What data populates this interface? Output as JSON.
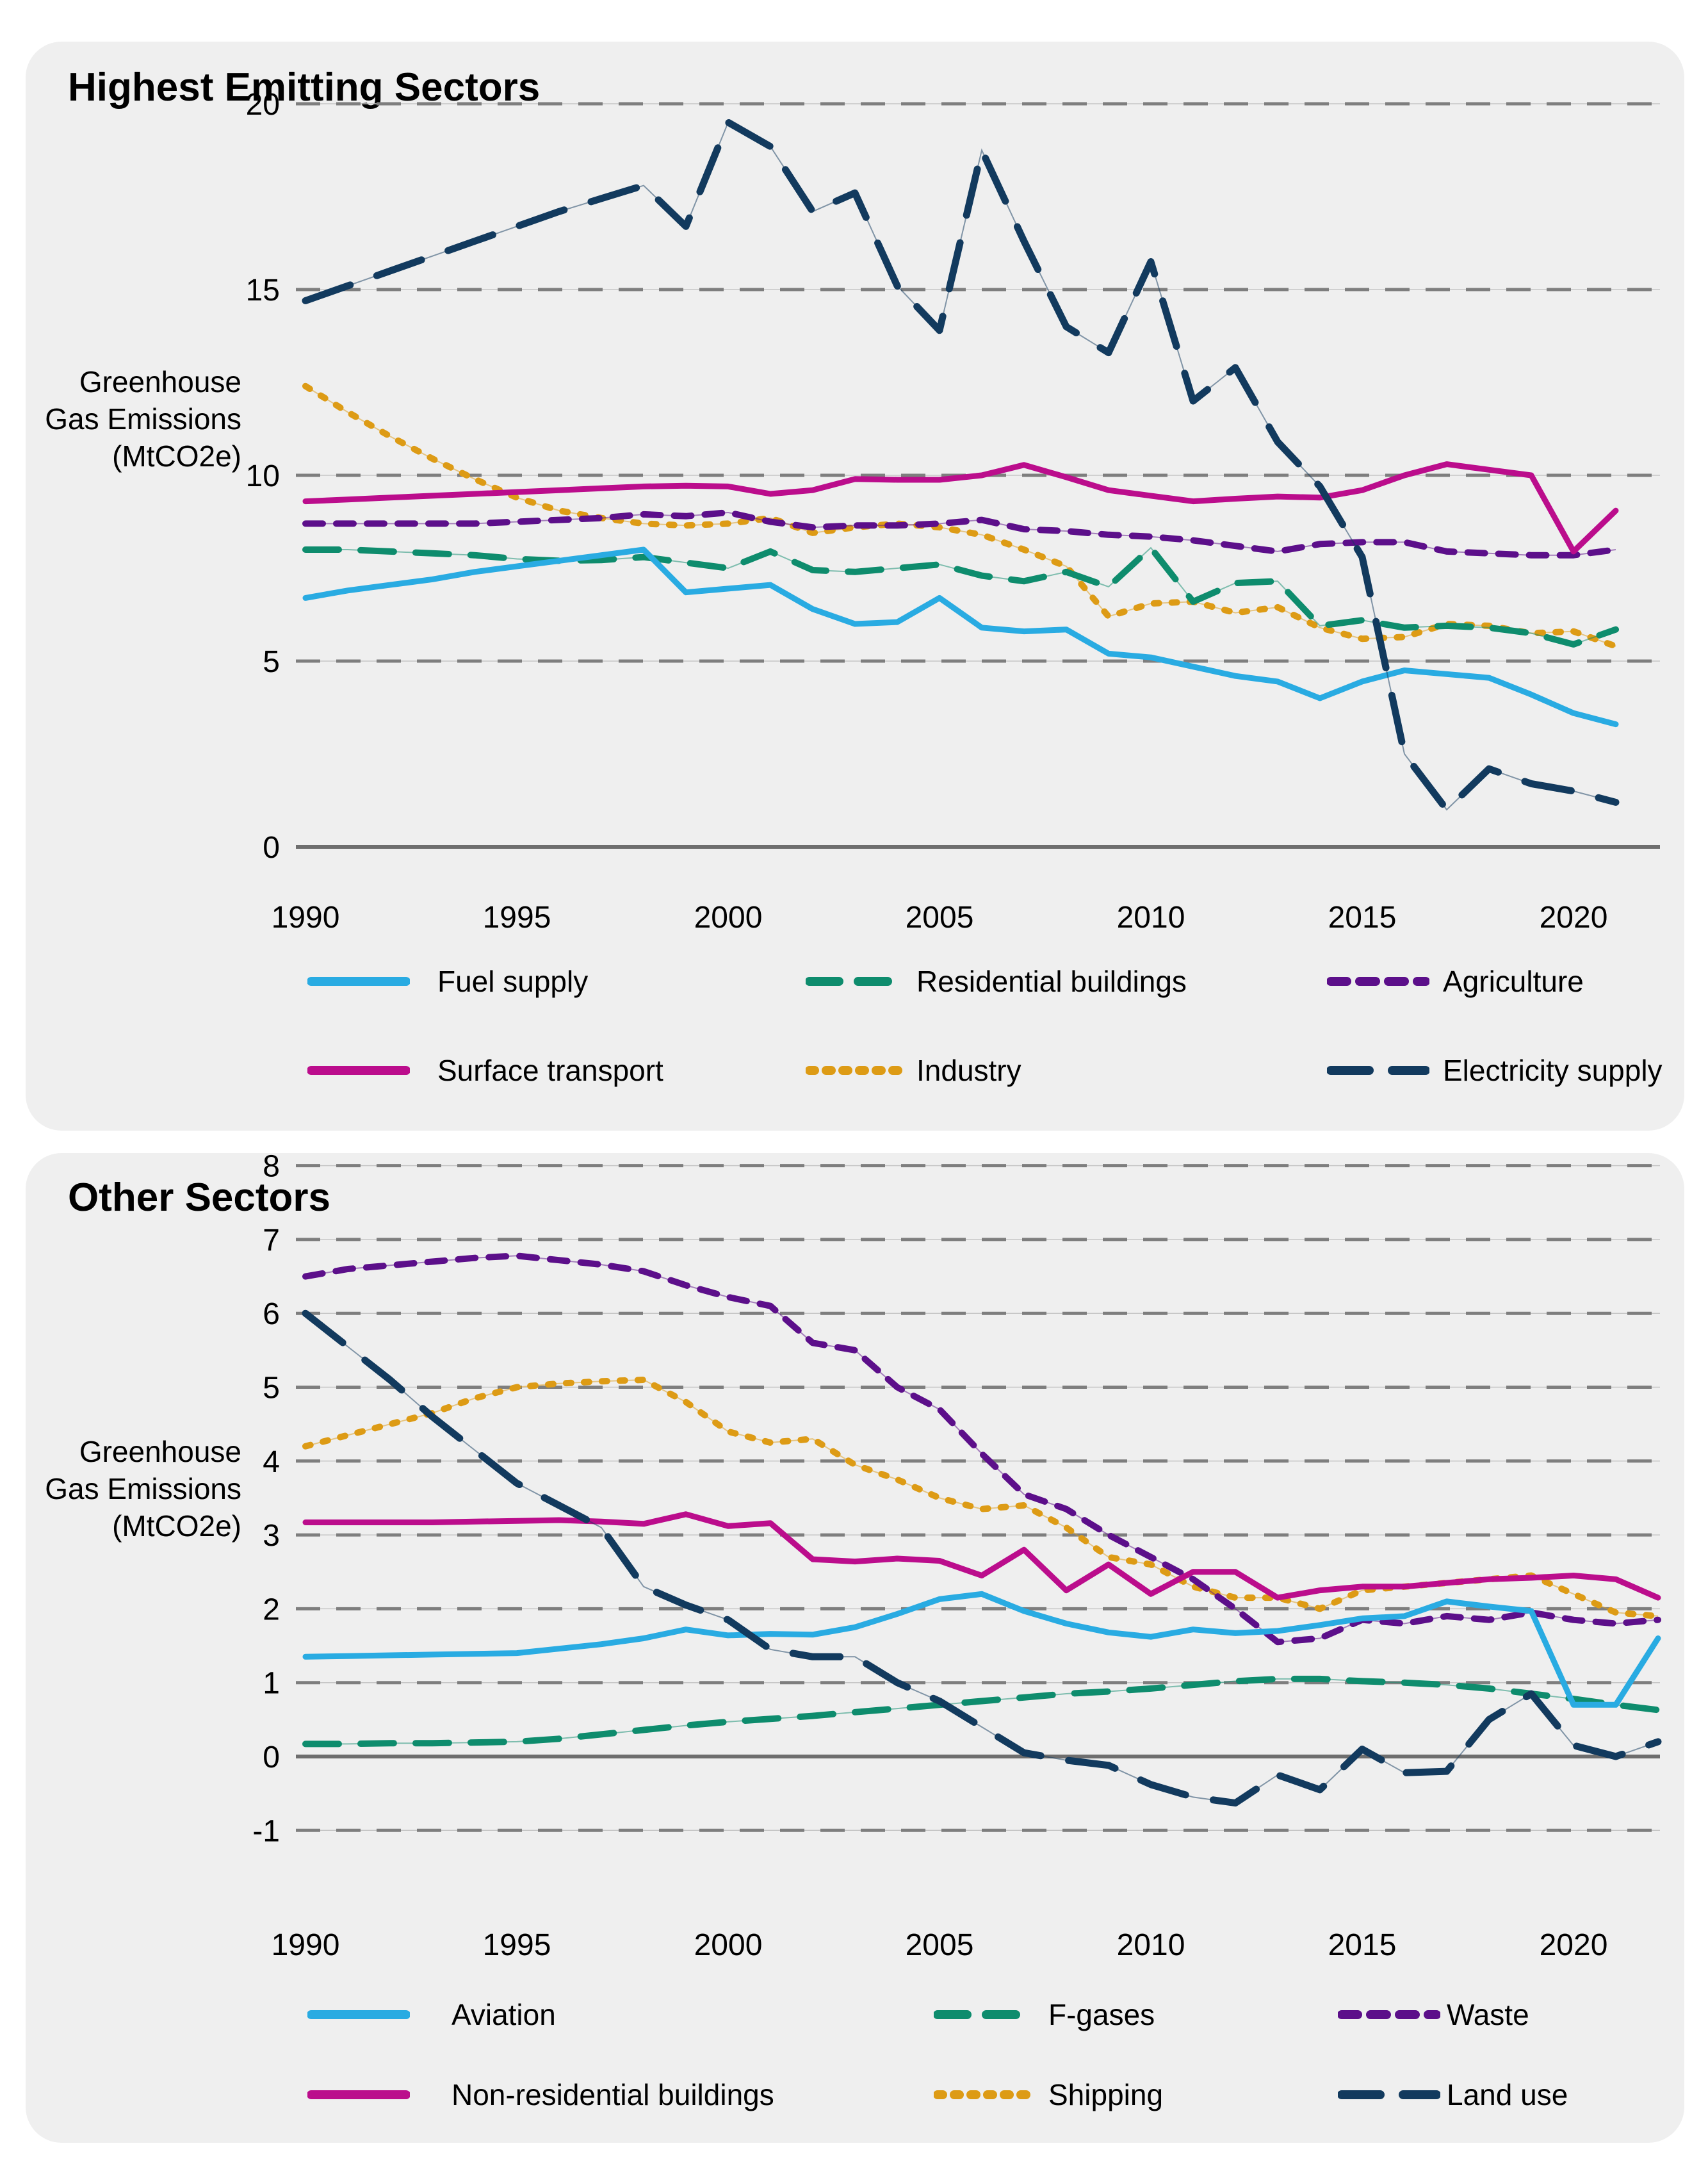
{
  "page": {
    "background": "#FFFFFF",
    "card_background": "#EFEFEF",
    "text_color": "#000000",
    "grid_color": "#7E7E7E",
    "grid_hairline_color": "#C6C6C6",
    "axis_zero_color": "#6E6E6E"
  },
  "chart_data": [
    {
      "type": "line",
      "title": "Highest Emitting Sectors",
      "ylabel_lines": [
        "Greenhouse",
        "Gas Emissions",
        "(MtCO2e)"
      ],
      "x_start_year": 1990,
      "x_end_year": 2021,
      "x_tick_years": [
        1990,
        1995,
        2000,
        2005,
        2010,
        2015,
        2020
      ],
      "y_ticks": [
        20,
        15,
        10,
        5,
        0
      ],
      "ylim": [
        0,
        20
      ],
      "grid": "dashed-horizontal",
      "legend_rows": [
        [
          "fuel_supply",
          "residential_buildings",
          "agriculture"
        ],
        [
          "surface_transport",
          "industry",
          "electricity_supply"
        ]
      ],
      "series": [
        {
          "key": "industry",
          "name": "Industry",
          "color": "#DD9B15",
          "line_style": "dotted",
          "values": [
            12.4,
            11.7,
            11.05,
            10.45,
            9.9,
            9.4,
            9.05,
            8.85,
            8.7,
            8.65,
            8.7,
            8.85,
            8.45,
            8.6,
            8.7,
            8.6,
            8.4,
            8.0,
            7.55,
            6.2,
            6.55,
            6.6,
            6.3,
            6.45,
            5.9,
            5.6,
            5.65,
            6.0,
            5.95,
            5.75,
            5.8,
            5.4
          ]
        },
        {
          "key": "residential_buildings",
          "name": "Residential buildings",
          "color": "#0E8C6D",
          "line_style": "dashed",
          "values": [
            8.0,
            8.0,
            7.95,
            7.9,
            7.85,
            7.75,
            7.7,
            7.72,
            7.8,
            7.65,
            7.5,
            7.95,
            7.45,
            7.4,
            7.5,
            7.6,
            7.3,
            7.15,
            7.4,
            7.0,
            8.05,
            6.6,
            7.1,
            7.15,
            5.95,
            6.1,
            5.9,
            5.95,
            5.9,
            5.75,
            5.45,
            5.85
          ]
        },
        {
          "key": "agriculture",
          "name": "Agriculture",
          "color": "#5C0F8A",
          "line_style": "short-dashed",
          "values": [
            8.7,
            8.7,
            8.7,
            8.7,
            8.7,
            8.75,
            8.8,
            8.85,
            8.95,
            8.9,
            9.0,
            8.75,
            8.6,
            8.65,
            8.65,
            8.7,
            8.8,
            8.55,
            8.5,
            8.4,
            8.35,
            8.25,
            8.1,
            7.95,
            8.15,
            8.2,
            8.2,
            7.95,
            7.9,
            7.85,
            7.85,
            8.0
          ]
        },
        {
          "key": "surface_transport",
          "name": "Surface transport",
          "color": "#BB0D8C",
          "line_style": "solid",
          "values": [
            9.3,
            9.35,
            9.4,
            9.45,
            9.5,
            9.55,
            9.6,
            9.65,
            9.7,
            9.72,
            9.7,
            9.5,
            9.6,
            9.9,
            9.88,
            9.88,
            10.0,
            10.28,
            9.95,
            9.6,
            9.45,
            9.3,
            9.37,
            9.43,
            9.4,
            9.6,
            10.0,
            10.3,
            10.15,
            10.0,
            7.95,
            9.05
          ]
        },
        {
          "key": "fuel_supply",
          "name": "Fuel supply",
          "color": "#29ABE2",
          "line_style": "solid",
          "values": [
            6.7,
            6.9,
            7.05,
            7.2,
            7.4,
            7.55,
            7.7,
            7.85,
            8.0,
            6.85,
            6.95,
            7.05,
            6.4,
            6.0,
            6.05,
            6.7,
            5.9,
            5.8,
            5.85,
            5.2,
            5.1,
            4.85,
            4.6,
            4.45,
            4.0,
            4.45,
            4.75,
            4.65,
            4.55,
            4.1,
            3.6,
            3.3
          ]
        },
        {
          "key": "electricity_supply",
          "name": "Electricity supply",
          "color": "#123A5E",
          "line_style": "long-dashed",
          "values": [
            14.7,
            15.1,
            15.5,
            15.9,
            16.3,
            16.7,
            17.1,
            17.45,
            17.8,
            16.7,
            19.5,
            18.85,
            17.1,
            17.6,
            15.1,
            13.9,
            18.75,
            16.3,
            14.0,
            13.3,
            15.75,
            12.0,
            12.9,
            10.9,
            9.7,
            7.8,
            2.5,
            1.0,
            2.1,
            1.7,
            1.5,
            1.2
          ]
        }
      ]
    },
    {
      "type": "line",
      "title": "Other Sectors",
      "ylabel_lines": [
        "Greenhouse",
        "Gas Emissions",
        "(MtCO2e)"
      ],
      "x_start_year": 1990,
      "x_end_year": 2022,
      "x_tick_years": [
        1990,
        1995,
        2000,
        2005,
        2010,
        2015,
        2020
      ],
      "y_ticks": [
        8,
        7,
        6,
        5,
        4,
        3,
        2,
        1,
        0,
        -1
      ],
      "ylim": [
        -1,
        8
      ],
      "grid": "dashed-horizontal",
      "legend_rows": [
        [
          "aviation",
          "f_gases",
          "waste"
        ],
        [
          "non_residential_buildings",
          "shipping",
          "land_use"
        ]
      ],
      "series": [
        {
          "key": "shipping",
          "name": "Shipping",
          "color": "#DD9B15",
          "line_style": "dotted",
          "values": [
            4.2,
            4.35,
            4.5,
            4.65,
            4.85,
            5.0,
            5.05,
            5.08,
            5.1,
            4.8,
            4.4,
            4.25,
            4.3,
            3.95,
            3.75,
            3.5,
            3.35,
            3.4,
            3.1,
            2.7,
            2.6,
            2.3,
            2.15,
            2.15,
            2.0,
            2.25,
            2.3,
            2.35,
            2.4,
            2.45,
            2.2,
            1.95,
            1.9
          ]
        },
        {
          "key": "f_gases",
          "name": "F-gases",
          "color": "#0E8C6D",
          "line_style": "dashed",
          "values": [
            0.17,
            0.17,
            0.18,
            0.18,
            0.19,
            0.2,
            0.24,
            0.3,
            0.36,
            0.42,
            0.47,
            0.51,
            0.55,
            0.6,
            0.65,
            0.7,
            0.75,
            0.8,
            0.85,
            0.88,
            0.92,
            0.97,
            1.02,
            1.05,
            1.05,
            1.02,
            1.0,
            0.97,
            0.92,
            0.85,
            0.78,
            0.7,
            0.63
          ]
        },
        {
          "key": "waste",
          "name": "Waste",
          "color": "#5C0F8A",
          "line_style": "short-dashed",
          "values": [
            6.5,
            6.6,
            6.65,
            6.7,
            6.75,
            6.78,
            6.72,
            6.66,
            6.57,
            6.38,
            6.22,
            6.1,
            5.6,
            5.5,
            5.0,
            4.7,
            4.1,
            3.55,
            3.35,
            3.0,
            2.7,
            2.4,
            2.0,
            1.55,
            1.6,
            1.85,
            1.8,
            1.9,
            1.85,
            1.95,
            1.85,
            1.8,
            1.85
          ]
        },
        {
          "key": "non_residential_buildings",
          "name": "Non-residential buildings",
          "color": "#BB0D8C",
          "line_style": "solid",
          "values": [
            3.17,
            3.17,
            3.17,
            3.17,
            3.18,
            3.19,
            3.2,
            3.18,
            3.15,
            3.28,
            3.12,
            3.16,
            2.67,
            2.64,
            2.68,
            2.65,
            2.45,
            2.8,
            2.25,
            2.6,
            2.2,
            2.5,
            2.5,
            2.15,
            2.25,
            2.3,
            2.3,
            2.35,
            2.4,
            2.42,
            2.45,
            2.4,
            2.15
          ]
        },
        {
          "key": "aviation",
          "name": "Aviation",
          "color": "#29ABE2",
          "line_style": "solid",
          "values": [
            1.35,
            1.36,
            1.37,
            1.38,
            1.39,
            1.4,
            1.46,
            1.52,
            1.6,
            1.72,
            1.64,
            1.66,
            1.65,
            1.75,
            1.93,
            2.13,
            2.2,
            1.97,
            1.8,
            1.68,
            1.62,
            1.72,
            1.67,
            1.7,
            1.78,
            1.87,
            1.9,
            2.1,
            2.03,
            1.97,
            0.7,
            0.7,
            1.6
          ]
        },
        {
          "key": "land_use",
          "name": "Land use",
          "color": "#123A5E",
          "line_style": "long-dashed",
          "values": [
            6.0,
            5.55,
            5.1,
            4.6,
            4.15,
            3.7,
            3.4,
            3.1,
            2.3,
            2.05,
            1.85,
            1.45,
            1.35,
            1.35,
            1.0,
            0.75,
            0.4,
            0.05,
            -0.05,
            -0.12,
            -0.38,
            -0.55,
            -0.63,
            -0.25,
            -0.45,
            0.1,
            -0.22,
            -0.2,
            0.5,
            0.85,
            0.15,
            0.0,
            0.2
          ]
        }
      ]
    }
  ]
}
